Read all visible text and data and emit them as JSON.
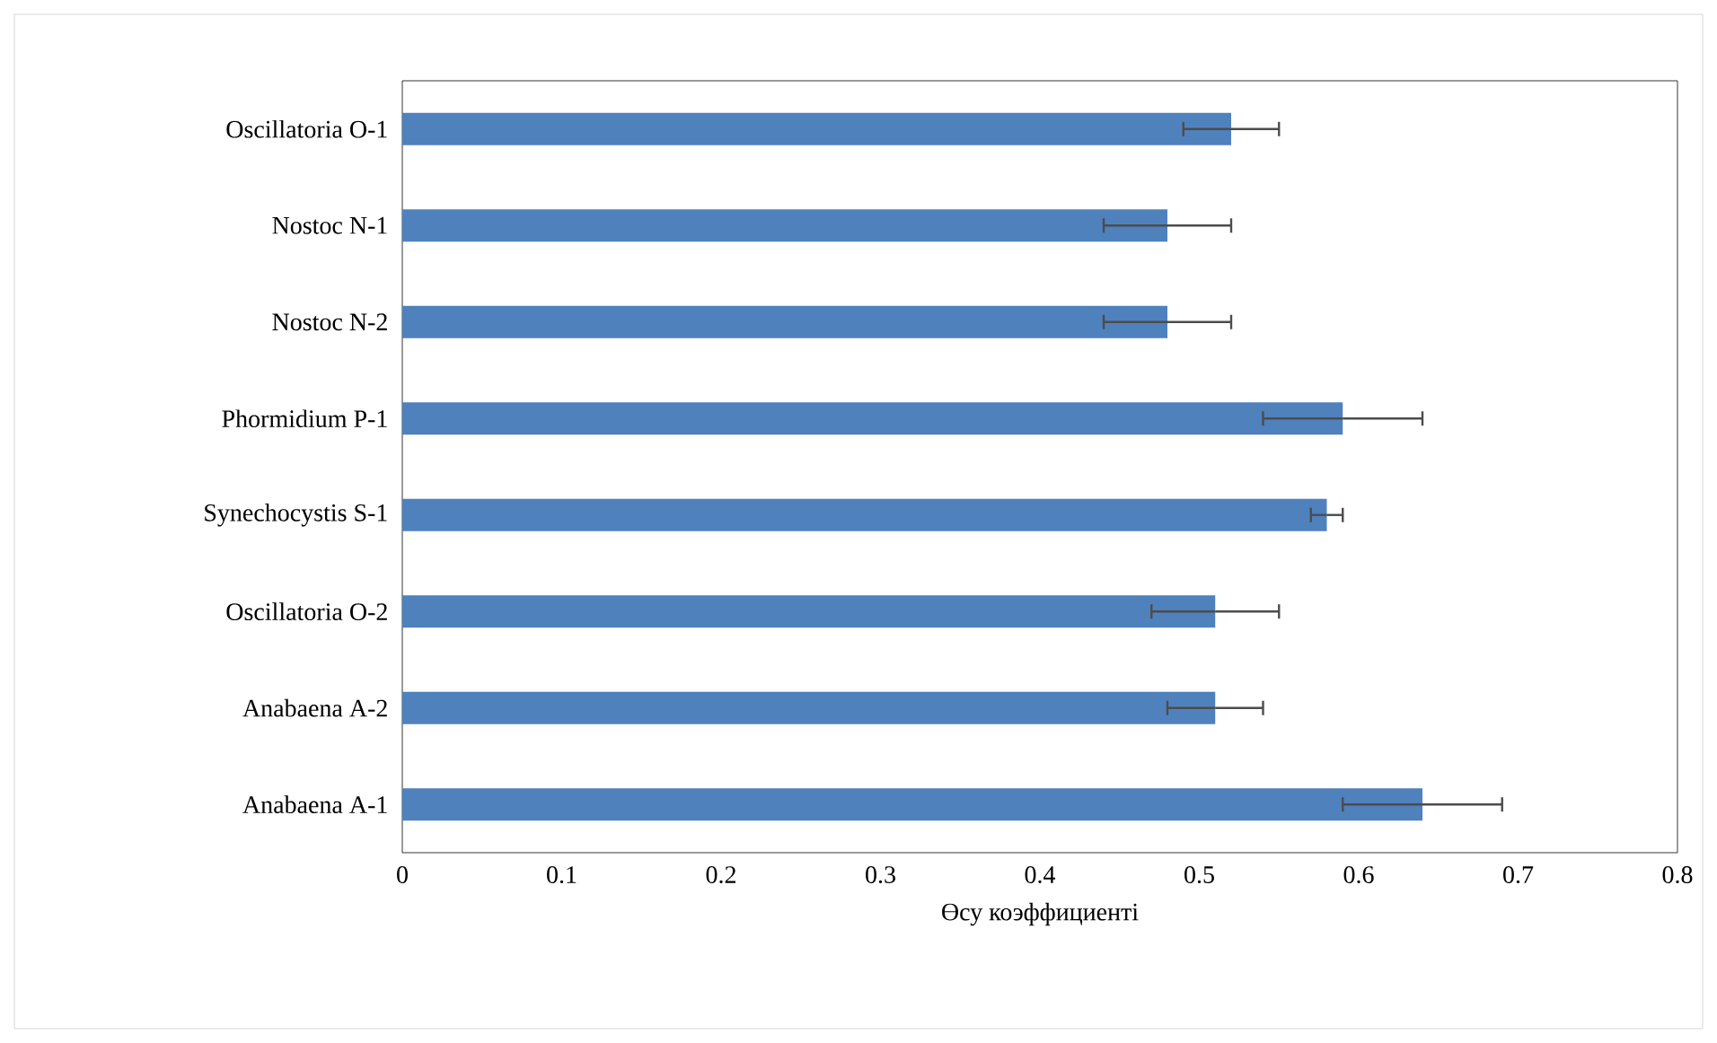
{
  "chart_data": {
    "type": "bar",
    "orientation": "horizontal",
    "xlabel": "Өсу коэффициенті",
    "categories": [
      "Oscillatoria O-1",
      "Nostoc N-1",
      "Nostoc N-2",
      "Phormidium P-1",
      "Synechocystis S-1",
      "Oscillatoria O-2",
      "Anabaena  A-2",
      "Anabaena  A-1"
    ],
    "values": [
      0.52,
      0.48,
      0.48,
      0.59,
      0.58,
      0.51,
      0.51,
      0.64
    ],
    "errors": [
      0.03,
      0.04,
      0.04,
      0.05,
      0.01,
      0.04,
      0.03,
      0.05
    ],
    "color": "#4f81bd",
    "xlim": [
      0,
      0.8
    ],
    "xticks": [
      0,
      0.1,
      0.2,
      0.3,
      0.4,
      0.5,
      0.6,
      0.7,
      0.8
    ],
    "grid": false
  }
}
